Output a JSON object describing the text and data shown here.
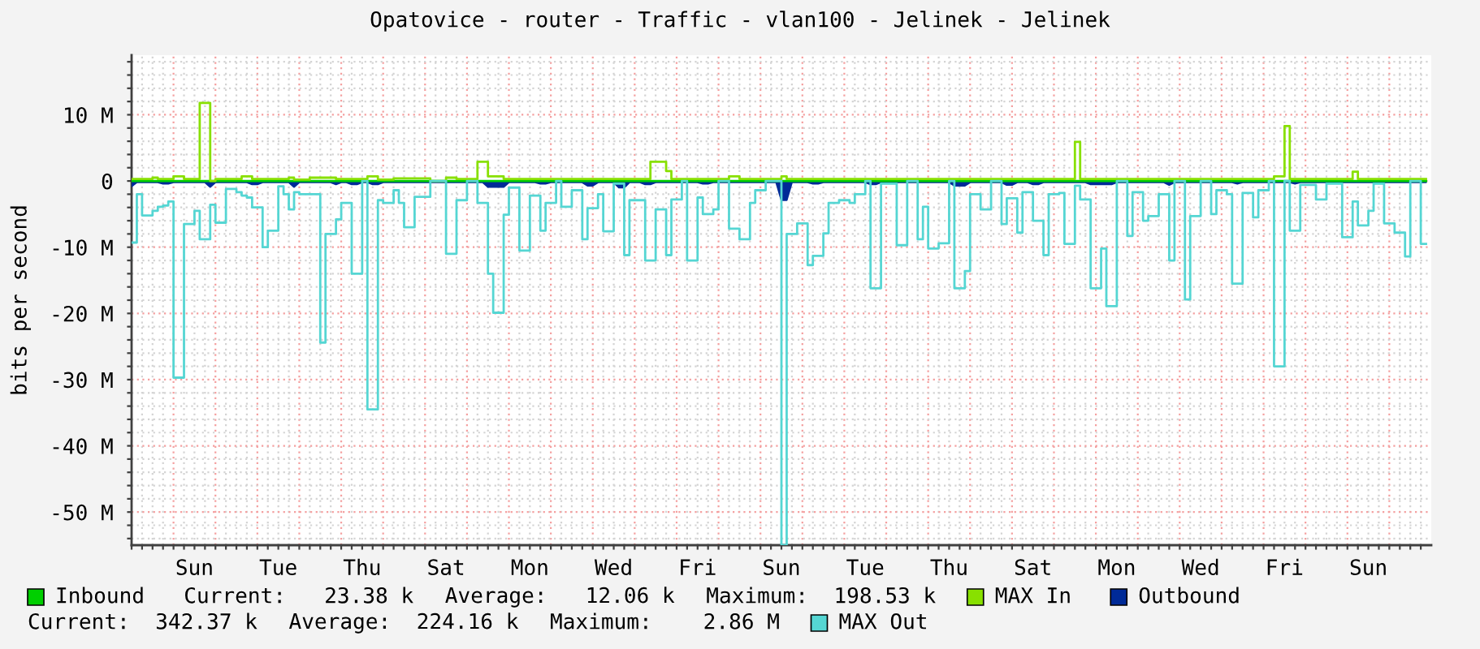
{
  "chart_data": {
    "type": "step",
    "title": "Opatovice - router - Traffic - vlan100 - Jelinek - Jelinek",
    "ylabel": "bits per second",
    "categories": [
      null,
      null,
      null,
      null,
      null,
      null,
      null,
      null,
      null,
      null,
      null,
      null,
      "Sun",
      null,
      null,
      null,
      null,
      null,
      null,
      null,
      null,
      null,
      null,
      null,
      null,
      null,
      null,
      null,
      "Tue",
      null,
      null,
      null,
      null,
      null,
      null,
      null,
      null,
      null,
      null,
      null,
      null,
      null,
      null,
      null,
      "Thu",
      null,
      null,
      null,
      null,
      null,
      null,
      null,
      null,
      null,
      null,
      null,
      null,
      null,
      null,
      null,
      "Sat",
      null,
      null,
      null,
      null,
      null,
      null,
      null,
      null,
      null,
      null,
      null,
      null,
      null,
      null,
      null,
      "Mon",
      null,
      null,
      null,
      null,
      null,
      null,
      null,
      null,
      null,
      null,
      null,
      null,
      null,
      null,
      null,
      "Wed",
      null,
      null,
      null,
      null,
      null,
      null,
      null,
      null,
      null,
      null,
      null,
      null,
      null,
      null,
      null,
      "Fri",
      null,
      null,
      null,
      null,
      null,
      null,
      null,
      null,
      null,
      null,
      null,
      null,
      null,
      null,
      null,
      "Sun",
      null,
      null,
      null,
      null,
      null,
      null,
      null,
      null,
      null,
      null,
      null,
      null,
      null,
      null,
      null,
      "Tue",
      null,
      null,
      null,
      null,
      null,
      null,
      null,
      null,
      null,
      null,
      null,
      null,
      null,
      null,
      null,
      "Thu",
      null,
      null,
      null,
      null,
      null,
      null,
      null,
      null,
      null,
      null,
      null,
      null,
      null,
      null,
      null,
      "Sat",
      null,
      null,
      null,
      null,
      null,
      null,
      null,
      null,
      null,
      null,
      null,
      null,
      null,
      null,
      null,
      "Mon",
      null,
      null,
      null,
      null,
      null,
      null,
      null,
      null,
      null,
      null,
      null,
      null,
      null,
      null,
      null,
      "Wed",
      null,
      null,
      null,
      null,
      null,
      null,
      null,
      null,
      null,
      null,
      null,
      null,
      null,
      null,
      null,
      "Fri",
      null,
      null,
      null,
      null,
      null,
      null,
      null,
      null,
      null,
      null,
      null,
      null,
      null,
      null,
      null,
      "Sun",
      null,
      null,
      null,
      null,
      null,
      null,
      null,
      null,
      null,
      null,
      null
    ],
    "ylim": [
      -55,
      19
    ],
    "yticks": [
      {
        "value": -54,
        "label": null
      },
      {
        "value": -52,
        "label": null
      },
      {
        "value": -50,
        "label": "-50 M"
      },
      {
        "value": -48,
        "label": null
      },
      {
        "value": -46,
        "label": null
      },
      {
        "value": -44,
        "label": null
      },
      {
        "value": -42,
        "label": null
      },
      {
        "value": -40,
        "label": "-40 M"
      },
      {
        "value": -38,
        "label": null
      },
      {
        "value": -36,
        "label": null
      },
      {
        "value": -34,
        "label": null
      },
      {
        "value": -32,
        "label": null
      },
      {
        "value": -30,
        "label": "-30 M"
      },
      {
        "value": -28,
        "label": null
      },
      {
        "value": -26,
        "label": null
      },
      {
        "value": -24,
        "label": null
      },
      {
        "value": -22,
        "label": null
      },
      {
        "value": -20,
        "label": "-20 M"
      },
      {
        "value": -18,
        "label": null
      },
      {
        "value": -16,
        "label": null
      },
      {
        "value": -14,
        "label": null
      },
      {
        "value": -12,
        "label": null
      },
      {
        "value": -10,
        "label": "-10 M"
      },
      {
        "value": -8,
        "label": null
      },
      {
        "value": -6,
        "label": null
      },
      {
        "value": -4,
        "label": null
      },
      {
        "value": -2,
        "label": null
      },
      0,
      {
        "value": 2,
        "label": null
      },
      {
        "value": 4,
        "label": null
      },
      {
        "value": 6,
        "label": null
      },
      {
        "value": 8,
        "label": null
      },
      {
        "value": 10,
        "label": "10 M"
      },
      {
        "value": 12,
        "label": null
      },
      {
        "value": 14,
        "label": null
      },
      {
        "value": 16,
        "label": null
      },
      {
        "value": 18,
        "label": null
      }
    ],
    "grid": true,
    "legend": "bottom",
    "annotations": [
      "Current:   23.38 k",
      "Average:   12.06 k",
      "Maximum:  198.53 k",
      "Current:  342.37 k",
      "Average:  224.16 k",
      "Maximum:    2.86 M"
    ],
    "series": [
      {
        "name": "Inbound",
        "color": "#00cf00",
        "values": [
          0,
          0,
          0,
          0,
          0,
          0,
          0,
          0,
          0,
          0,
          0,
          0,
          0,
          0,
          0,
          0,
          0,
          0,
          0,
          0,
          0,
          0,
          0,
          0,
          0,
          0,
          0,
          0,
          0,
          0,
          0,
          0,
          0,
          0,
          0,
          0,
          0,
          0,
          0,
          0,
          0,
          0,
          0,
          0,
          0,
          0,
          0,
          0,
          0,
          0,
          0,
          0,
          0,
          0,
          0,
          0,
          0,
          0,
          0,
          0,
          0,
          0,
          0,
          0,
          0,
          0,
          0,
          0,
          0,
          0,
          0,
          0,
          0,
          0,
          0,
          0,
          0,
          0,
          0,
          0,
          0,
          0,
          0,
          0,
          0,
          0,
          0,
          0,
          0,
          0,
          0,
          0,
          0,
          0,
          0,
          0,
          0,
          0,
          0,
          0,
          0,
          0,
          0,
          0,
          0,
          0,
          0,
          0,
          0,
          0,
          0,
          0,
          0,
          0,
          0,
          0,
          0,
          0,
          0,
          0,
          0,
          0,
          0,
          0,
          0,
          0,
          0,
          0,
          0,
          0,
          0,
          0,
          0,
          0,
          0,
          0,
          0,
          0,
          0,
          0,
          0,
          0,
          0,
          0,
          0,
          0,
          0,
          0,
          0,
          0,
          0,
          0,
          0,
          0,
          0,
          0,
          0,
          0,
          0,
          0,
          0,
          0,
          0,
          0,
          0,
          0,
          0,
          0,
          0,
          0,
          0,
          0,
          0,
          0,
          0,
          0,
          0,
          0,
          0,
          0,
          0,
          0,
          0,
          0,
          0,
          0,
          0,
          0,
          0,
          0,
          0,
          0,
          0,
          0,
          0,
          0,
          0,
          0,
          0,
          0,
          0,
          0,
          0,
          0,
          0,
          0,
          0,
          0,
          0,
          0,
          0,
          0,
          0,
          0,
          0,
          0,
          0,
          0,
          0,
          0,
          0,
          0,
          0,
          0,
          0,
          0,
          0,
          0,
          0,
          0,
          0,
          0,
          0,
          0,
          0,
          0,
          0,
          0,
          0,
          0,
          0,
          0,
          0,
          0,
          0,
          0,
          0,
          0
        ]
      },
      {
        "name": "MAX In",
        "color": "#88e000",
        "values": [
          0.3,
          0.3,
          0.3,
          0.3,
          0.5,
          0.3,
          0.3,
          0.3,
          0.7,
          0.7,
          0.3,
          0.3,
          0.3,
          11.8,
          11.8,
          0,
          0.3,
          0.3,
          0.3,
          0.3,
          0.3,
          0.7,
          0.7,
          0.3,
          0.3,
          0.3,
          0.3,
          0.3,
          0.3,
          0.3,
          0.5,
          0.2,
          0.2,
          0.2,
          0.5,
          0.5,
          0.5,
          0.5,
          0.5,
          0.3,
          0.3,
          0.3,
          0.3,
          0.3,
          0.3,
          0.7,
          0.7,
          0.2,
          0.2,
          0.2,
          0.4,
          0.4,
          0.4,
          0.4,
          0.4,
          0.4,
          0.4,
          0,
          0,
          0,
          0.5,
          0.5,
          0.3,
          0.3,
          0.3,
          0.3,
          2.9,
          2.9,
          0.7,
          0.7,
          0.7,
          0.3,
          0.3,
          0.3,
          0.3,
          0.3,
          0.3,
          0.3,
          0.3,
          0.3,
          0.3,
          0.3,
          0.3,
          0.3,
          0.3,
          0.3,
          0.3,
          0.3,
          0.3,
          0.3,
          0.3,
          0.3,
          0.3,
          0.3,
          0.3,
          0.3,
          0.3,
          0.3,
          0.3,
          2.9,
          2.9,
          2.9,
          1.5,
          0.3,
          0.3,
          0.3,
          0.3,
          0.3,
          0.3,
          0.3,
          0.3,
          0.3,
          0.3,
          0.3,
          0.7,
          0.7,
          0.3,
          0.3,
          0.3,
          0.3,
          0.3,
          0.3,
          0.3,
          0.3,
          0.7,
          0.3,
          0.3,
          0.3,
          0.3,
          0.3,
          0.3,
          0.3,
          0.3,
          0.3,
          0.3,
          0.3,
          0.3,
          0.3,
          0.3,
          0.3,
          0.3,
          0.3,
          0.3,
          0.3,
          0.3,
          0.3,
          0.3,
          0.3,
          0.3,
          0.3,
          0.3,
          0.3,
          0.3,
          0.3,
          0.3,
          0.3,
          0.3,
          0.3,
          0.3,
          0.3,
          0.3,
          0.3,
          0.3,
          0.3,
          0.3,
          0.3,
          0.3,
          0.3,
          0.3,
          0.3,
          0.3,
          0.3,
          0.3,
          0.3,
          0.3,
          0.3,
          0.3,
          0.3,
          0.3,
          0.3,
          5.9,
          0.3,
          0.3,
          0.3,
          0.3,
          0.3,
          0.3,
          0.3,
          0.3,
          0.3,
          0.3,
          0.3,
          0.3,
          0.3,
          0.3,
          0.3,
          0.3,
          0.3,
          0.3,
          0.3,
          0.3,
          0.3,
          0.3,
          0.3,
          0.3,
          0.3,
          0.3,
          0.3,
          0.3,
          0.3,
          0.3,
          0.3,
          0.3,
          0.3,
          0.3,
          0.3,
          0.3,
          0.3,
          0.7,
          0.7,
          8.3,
          0.3,
          0.3,
          0.3,
          0.3,
          0.3,
          0.3,
          0.3,
          0.3,
          0.3,
          0.3,
          0.3,
          0.3,
          1.4,
          0.3,
          0.3,
          0.3,
          0.3,
          0.3,
          0.3,
          0.3,
          0.3,
          0.3,
          0.3,
          0.3,
          0.3,
          0.3,
          0.3
        ]
      },
      {
        "name": "Outbound",
        "type": "area",
        "color": "#002a97",
        "values": [
          -0.8,
          -0.2,
          -0.2,
          -0.2,
          -0.2,
          -0.2,
          -0.4,
          -0.4,
          -0.2,
          -0.2,
          -0.2,
          -0.2,
          -0.2,
          -0.2,
          -0.2,
          -0.9,
          -0.2,
          -0.2,
          -0.2,
          -0.2,
          -0.2,
          -0.2,
          -0.2,
          -0.5,
          -0.5,
          -0.2,
          -0.2,
          -0.2,
          -0.2,
          -0.2,
          -0.2,
          -0.9,
          -0.2,
          -0.2,
          -0.2,
          -0.2,
          -0.2,
          -0.2,
          -0.2,
          -0.5,
          -0.2,
          -0.2,
          -0.5,
          -0.5,
          -0.2,
          -0.2,
          -0.5,
          -0.5,
          -0.2,
          -0.2,
          -0.2,
          -0.2,
          -0.2,
          -0.2,
          -0.2,
          -0.2,
          -0.2,
          -0.2,
          -0.2,
          -0.2,
          -0.2,
          -0.2,
          -0.2,
          -0.2,
          -0.2,
          -0.2,
          -0.2,
          -0.2,
          -0.9,
          -0.9,
          -0.9,
          -0.9,
          -0.2,
          -0.2,
          -0.2,
          -0.2,
          -0.2,
          -0.2,
          -0.4,
          -0.4,
          -0.2,
          -0.2,
          -0.2,
          -0.2,
          -0.2,
          -0.2,
          -0.2,
          -0.7,
          -0.7,
          -0.2,
          -0.2,
          -0.2,
          -0.2,
          -1.0,
          -1.0,
          -0.2,
          -0.2,
          -0.2,
          -0.5,
          -0.5,
          -0.2,
          -0.2,
          -0.2,
          -0.2,
          -0.2,
          -0.2,
          -0.2,
          -0.2,
          -0.2,
          -0.4,
          -0.4,
          -0.2,
          -0.2,
          -0.2,
          -0.2,
          -0.2,
          -0.2,
          -0.2,
          -0.2,
          -0.2,
          -0.2,
          -0.2,
          -0.2,
          -0.2,
          -2.9,
          -2.9,
          -0.2,
          -0.2,
          -0.2,
          -0.2,
          -0.4,
          -0.4,
          -0.2,
          -0.2,
          -0.2,
          -0.2,
          -0.2,
          -0.2,
          -0.2,
          -0.2,
          -0.2,
          -0.5,
          -0.5,
          -0.2,
          -0.2,
          -0.2,
          -0.2,
          -0.2,
          -0.2,
          -0.2,
          -0.2,
          -0.2,
          -0.2,
          -0.2,
          -0.2,
          -0.2,
          -0.2,
          -0.7,
          -0.7,
          -0.7,
          -0.2,
          -0.2,
          -0.2,
          -0.2,
          -0.2,
          -0.2,
          -0.2,
          -0.6,
          -0.6,
          -0.2,
          -0.2,
          -0.2,
          -0.5,
          -0.5,
          -0.2,
          -0.2,
          -0.2,
          -0.2,
          -0.2,
          -0.2,
          -0.2,
          -0.2,
          -0.2,
          -0.5,
          -0.5,
          -0.5,
          -0.5,
          -0.5,
          -0.2,
          -0.2,
          -0.2,
          -0.2,
          -0.2,
          -0.2,
          -0.2,
          -0.2,
          -0.2,
          -0.2,
          -0.6,
          -0.2,
          -0.2,
          -0.2,
          -0.2,
          -0.2,
          -0.2,
          -0.2,
          -0.2,
          -0.2,
          -0.2,
          -0.2,
          -0.2,
          -0.4,
          -0.2,
          -0.2,
          -0.2,
          -0.2,
          -0.2,
          -0.2,
          -0.2,
          -0.2,
          -0.2,
          -0.2,
          -0.4,
          -0.2,
          -0.2,
          -0.2,
          -0.2,
          -0.2,
          -0.2,
          -0.2,
          -0.2,
          -0.2,
          -0.2,
          -0.2,
          -0.2,
          -0.2,
          -0.2,
          -0.2,
          -0.2,
          -0.2,
          -0.2,
          -0.2,
          -0.2,
          -0.2,
          -0.2,
          -0.2,
          -0.2,
          -0.2
        ]
      },
      {
        "name": "MAX Out",
        "color": "#55d6d3",
        "values": [
          -9.3,
          -2,
          -5.2,
          -5.2,
          -4.5,
          -3.9,
          -3.7,
          -3.1,
          -29.7,
          -29.7,
          -6.5,
          -6.5,
          -4.5,
          -8.8,
          -8.8,
          -3.6,
          -6.3,
          -6.3,
          -1.2,
          -1.2,
          -1.7,
          -2.2,
          -2.5,
          -4,
          -4,
          -10,
          -7.5,
          -7.5,
          -0.8,
          -2,
          -4.3,
          -1.7,
          -2,
          -2,
          -2,
          -2,
          -24.4,
          -8,
          -8,
          -5.8,
          -3.3,
          -3.3,
          -14,
          -14,
          0,
          -34.5,
          -34.5,
          -2.9,
          -3.3,
          -3.3,
          -1.4,
          -3.3,
          -7,
          -7,
          -2.4,
          -2.4,
          -2.4,
          0,
          0,
          0,
          -11,
          -11,
          -2.9,
          -2.9,
          0,
          0,
          -3.3,
          -3.3,
          -14,
          -19.9,
          -19.9,
          -5.1,
          -1,
          -1,
          -10.5,
          -10.5,
          -2.2,
          -2.2,
          -7.5,
          -3.3,
          -3.3,
          0,
          -3.9,
          -3.9,
          -1.4,
          -1.4,
          -8.8,
          -4.1,
          -4.1,
          -2,
          -7.6,
          -7.6,
          -0.4,
          -0.4,
          -11.2,
          -2.9,
          -2.9,
          -2.9,
          -12,
          -12,
          -4.3,
          -4.3,
          -11.2,
          -2.8,
          -2.8,
          0,
          -12,
          -12,
          -2.5,
          -5,
          -5,
          -4.3,
          0,
          0,
          -7.2,
          -7.2,
          -8.8,
          -8.8,
          -3.3,
          -1.4,
          -1.4,
          0,
          0,
          0,
          -55,
          -8,
          -8,
          -6.4,
          -6.4,
          -12.7,
          -11.3,
          -11.3,
          -7.9,
          -3.3,
          -3.3,
          -2.9,
          -2.9,
          -3.3,
          -2,
          -2,
          0,
          -16.2,
          -16.2,
          -0.4,
          -0.4,
          -0.4,
          -9.7,
          -9.7,
          0,
          0,
          -8.8,
          -3.9,
          -10.2,
          -10.2,
          -9.4,
          -9.4,
          0,
          -16.2,
          -16.2,
          -13.6,
          -2,
          -2,
          -4.3,
          -4.3,
          0,
          0,
          -6.5,
          -2.6,
          -2.6,
          -7.8,
          -1.7,
          -1.7,
          -6,
          -6,
          -11.2,
          -2,
          -2,
          -1.8,
          -9.5,
          -9.5,
          -0.7,
          -2.8,
          -2.8,
          -16.2,
          -16.2,
          -10.2,
          -18.9,
          -18.9,
          0,
          0,
          -8.3,
          -1.7,
          -1.7,
          -6,
          -5.3,
          -5.3,
          -2,
          -2,
          -12,
          0,
          0,
          -17.9,
          -5.3,
          -5.3,
          0,
          0,
          -5,
          -1.4,
          -1.4,
          -2,
          -15.5,
          -15.5,
          -1.8,
          -1.8,
          -5.5,
          -1.4,
          -1.4,
          0,
          -28,
          -28,
          0,
          -7.5,
          -7.5,
          -0.6,
          -0.6,
          -0.6,
          -2.8,
          -2.8,
          -0.4,
          -0.4,
          -0.4,
          -8.5,
          -8.5,
          -3.1,
          -6.7,
          -6.7,
          -4.5,
          -0.4,
          -0.4,
          -6.4,
          -6.4,
          -7.8,
          -7.8,
          -11.4,
          0,
          0,
          -9.5,
          -9.5
        ]
      }
    ]
  }
}
